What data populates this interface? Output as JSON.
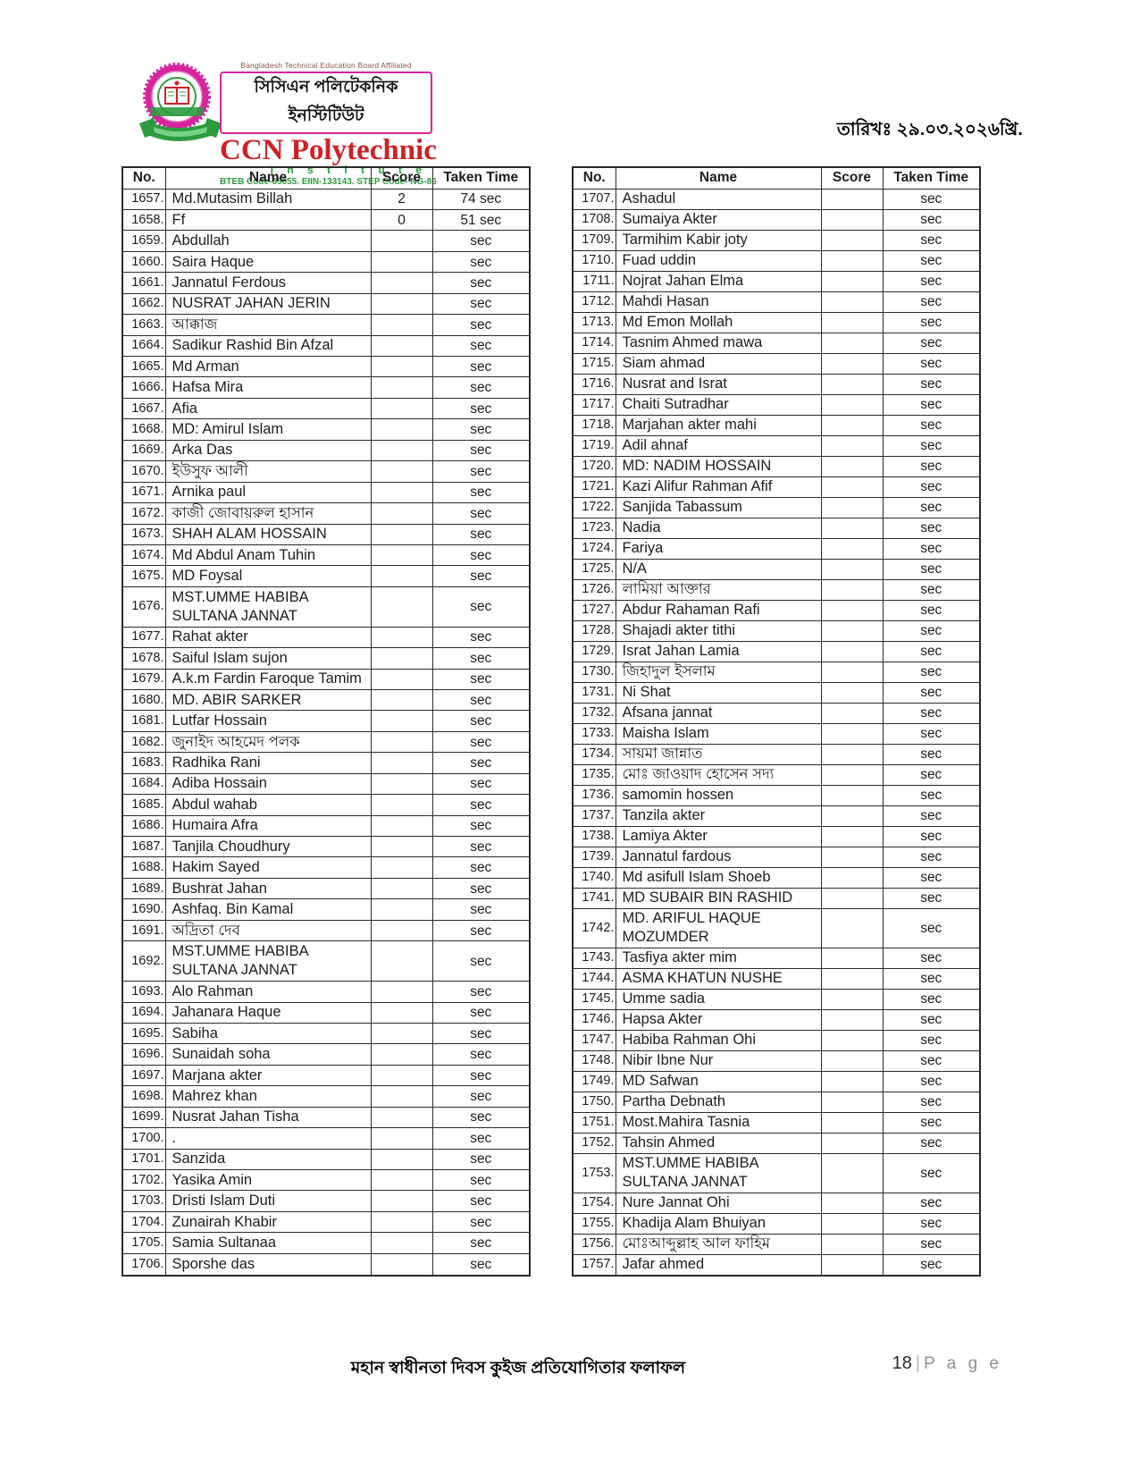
{
  "header": {
    "affiliation": "Bangladesh Technical Education Board Affiliated",
    "institute_name_bn": "সিসিএন পলিটেকনিক ইনস্টিটিউট",
    "institute_name_en": "CCN Polytechnic",
    "institute_sub": "I n s t i t u t e",
    "codes": "BTEB Code-65055. EIIN-133143. STEP Code- NG-86",
    "date": "তারিখঃ ২৯.০৩.২০২৬খ্রি.",
    "logo_colors": {
      "magenta": "#d6249c",
      "green": "#2e9b3f",
      "red": "#cf2127"
    }
  },
  "table_headers": {
    "no": "No.",
    "name": "Name",
    "score": "Score",
    "taken_time": "Taken Time"
  },
  "left_table": {
    "rows": [
      {
        "no": "1657.",
        "name": "Md.Mutasim Billah",
        "score": "2",
        "time": "74 sec"
      },
      {
        "no": "1658.",
        "name": "Ff",
        "score": "0",
        "time": "51 sec"
      },
      {
        "no": "1659.",
        "name": "Abdullah",
        "score": "",
        "time": "sec"
      },
      {
        "no": "1660.",
        "name": "Saira Haque",
        "score": "",
        "time": "sec"
      },
      {
        "no": "1661.",
        "name": "Jannatul Ferdous",
        "score": "",
        "time": "sec"
      },
      {
        "no": "1662.",
        "name": "NUSRAT JAHAN JERIN",
        "score": "",
        "time": "sec"
      },
      {
        "no": "1663.",
        "name": "আক্কাজ",
        "score": "",
        "time": "sec"
      },
      {
        "no": "1664.",
        "name": "Sadikur Rashid Bin Afzal",
        "score": "",
        "time": "sec"
      },
      {
        "no": "1665.",
        "name": "Md Arman",
        "score": "",
        "time": "sec"
      },
      {
        "no": "1666.",
        "name": "Hafsa Mira",
        "score": "",
        "time": "sec"
      },
      {
        "no": "1667.",
        "name": "Afia",
        "score": "",
        "time": "sec"
      },
      {
        "no": "1668.",
        "name": "MD: Amirul Islam",
        "score": "",
        "time": "sec"
      },
      {
        "no": "1669.",
        "name": "Arka Das",
        "score": "",
        "time": "sec"
      },
      {
        "no": "1670.",
        "name": "ইউসুফ আলী",
        "score": "",
        "time": "sec"
      },
      {
        "no": "1671.",
        "name": "Arnika paul",
        "score": "",
        "time": "sec"
      },
      {
        "no": "1672.",
        "name": "কাজী জোবায়রুল হাসান",
        "score": "",
        "time": "sec"
      },
      {
        "no": "1673.",
        "name": "SHAH ALAM HOSSAIN",
        "score": "",
        "time": "sec"
      },
      {
        "no": "1674.",
        "name": "Md Abdul Anam Tuhin",
        "score": "",
        "time": "sec"
      },
      {
        "no": "1675.",
        "name": "MD Foysal",
        "score": "",
        "time": "sec"
      },
      {
        "no": "1676.",
        "name": "MST.UMME HABIBA SULTANA JANNAT",
        "score": "",
        "time": "sec"
      },
      {
        "no": "1677.",
        "name": "Rahat akter",
        "score": "",
        "time": "sec"
      },
      {
        "no": "1678.",
        "name": "Saiful Islam sujon",
        "score": "",
        "time": "sec"
      },
      {
        "no": "1679.",
        "name": "A.k.m Fardin Faroque Tamim",
        "score": "",
        "time": "sec"
      },
      {
        "no": "1680.",
        "name": "MD. ABIR SARKER",
        "score": "",
        "time": "sec"
      },
      {
        "no": "1681.",
        "name": "Lutfar Hossain",
        "score": "",
        "time": "sec"
      },
      {
        "no": "1682.",
        "name": "জুনাইদ আহমেদ পলক",
        "score": "",
        "time": "sec"
      },
      {
        "no": "1683.",
        "name": "Radhika Rani",
        "score": "",
        "time": "sec"
      },
      {
        "no": "1684.",
        "name": "Adiba Hossain",
        "score": "",
        "time": "sec"
      },
      {
        "no": "1685.",
        "name": "Abdul wahab",
        "score": "",
        "time": "sec"
      },
      {
        "no": "1686.",
        "name": "Humaira Afra",
        "score": "",
        "time": "sec"
      },
      {
        "no": "1687.",
        "name": "Tanjila Choudhury",
        "score": "",
        "time": "sec"
      },
      {
        "no": "1688.",
        "name": "Hakim Sayed",
        "score": "",
        "time": "sec"
      },
      {
        "no": "1689.",
        "name": "Bushrat Jahan",
        "score": "",
        "time": "sec"
      },
      {
        "no": "1690.",
        "name": "Ashfaq. Bin Kamal",
        "score": "",
        "time": "sec"
      },
      {
        "no": "1691.",
        "name": "অদ্রিতা দেব",
        "score": "",
        "time": "sec"
      },
      {
        "no": "1692.",
        "name": "MST.UMME HABIBA SULTANA JANNAT",
        "score": "",
        "time": "sec"
      },
      {
        "no": "1693.",
        "name": "Alo Rahman",
        "score": "",
        "time": "sec"
      },
      {
        "no": "1694.",
        "name": "Jahanara Haque",
        "score": "",
        "time": "sec"
      },
      {
        "no": "1695.",
        "name": "Sabiha",
        "score": "",
        "time": "sec"
      },
      {
        "no": "1696.",
        "name": "Sunaidah soha",
        "score": "",
        "time": "sec"
      },
      {
        "no": "1697.",
        "name": "Marjana akter",
        "score": "",
        "time": "sec"
      },
      {
        "no": "1698.",
        "name": "Mahrez khan",
        "score": "",
        "time": "sec"
      },
      {
        "no": "1699.",
        "name": "Nusrat Jahan Tisha",
        "score": "",
        "time": "sec"
      },
      {
        "no": "1700.",
        "name": ".",
        "score": "",
        "time": "sec"
      },
      {
        "no": "1701.",
        "name": "Sanzida",
        "score": "",
        "time": "sec"
      },
      {
        "no": "1702.",
        "name": "Yasika Amin",
        "score": "",
        "time": "sec"
      },
      {
        "no": "1703.",
        "name": "Dristi Islam Duti",
        "score": "",
        "time": "sec"
      },
      {
        "no": "1704.",
        "name": "Zunairah Khabir",
        "score": "",
        "time": "sec"
      },
      {
        "no": "1705.",
        "name": "Samia Sultanaa",
        "score": "",
        "time": "sec"
      },
      {
        "no": "1706.",
        "name": "Sporshe das",
        "score": "",
        "time": "sec"
      }
    ]
  },
  "right_table": {
    "rows": [
      {
        "no": "1707.",
        "name": "Ashadul",
        "score": "",
        "time": "sec"
      },
      {
        "no": "1708.",
        "name": "Sumaiya Akter",
        "score": "",
        "time": "sec"
      },
      {
        "no": "1709.",
        "name": "Tarmihim Kabir joty",
        "score": "",
        "time": "sec"
      },
      {
        "no": "1710.",
        "name": "Fuad uddin",
        "score": "",
        "time": "sec"
      },
      {
        "no": "1711.",
        "name": "Nojrat Jahan Elma",
        "score": "",
        "time": "sec"
      },
      {
        "no": "1712.",
        "name": "Mahdi Hasan",
        "score": "",
        "time": "sec"
      },
      {
        "no": "1713.",
        "name": "Md Emon Mollah",
        "score": "",
        "time": "sec"
      },
      {
        "no": "1714.",
        "name": "Tasnim Ahmed mawa",
        "score": "",
        "time": "sec"
      },
      {
        "no": "1715.",
        "name": "Siam ahmad",
        "score": "",
        "time": "sec"
      },
      {
        "no": "1716.",
        "name": "Nusrat and Israt",
        "score": "",
        "time": "sec"
      },
      {
        "no": "1717.",
        "name": "Chaiti Sutradhar",
        "score": "",
        "time": "sec"
      },
      {
        "no": "1718.",
        "name": "Marjahan akter mahi",
        "score": "",
        "time": "sec"
      },
      {
        "no": "1719.",
        "name": "Adil ahnaf",
        "score": "",
        "time": "sec"
      },
      {
        "no": "1720.",
        "name": "MD: NADIM HOSSAIN",
        "score": "",
        "time": "sec"
      },
      {
        "no": "1721.",
        "name": "Kazi Alifur Rahman Afif",
        "score": "",
        "time": "sec"
      },
      {
        "no": "1722.",
        "name": "Sanjida Tabassum",
        "score": "",
        "time": "sec"
      },
      {
        "no": "1723.",
        "name": "Nadia",
        "score": "",
        "time": "sec"
      },
      {
        "no": "1724.",
        "name": "Fariya",
        "score": "",
        "time": "sec"
      },
      {
        "no": "1725.",
        "name": "N/A",
        "score": "",
        "time": "sec"
      },
      {
        "no": "1726.",
        "name": "লামিয়া আক্তার",
        "score": "",
        "time": "sec"
      },
      {
        "no": "1727.",
        "name": "Abdur Rahaman Rafi",
        "score": "",
        "time": "sec"
      },
      {
        "no": "1728.",
        "name": "Shajadi akter tithi",
        "score": "",
        "time": "sec"
      },
      {
        "no": "1729.",
        "name": "Israt Jahan Lamia",
        "score": "",
        "time": "sec"
      },
      {
        "no": "1730.",
        "name": "জিহাদুল ইসলাম",
        "score": "",
        "time": "sec"
      },
      {
        "no": "1731.",
        "name": "Ni Shat",
        "score": "",
        "time": "sec"
      },
      {
        "no": "1732.",
        "name": "Afsana jannat",
        "score": "",
        "time": "sec"
      },
      {
        "no": "1733.",
        "name": "Maisha Islam",
        "score": "",
        "time": "sec"
      },
      {
        "no": "1734.",
        "name": "সায়মা জান্নাত",
        "score": "",
        "time": "sec"
      },
      {
        "no": "1735.",
        "name": "মোঃ জাওয়াদ হোসেন সদ্য",
        "score": "",
        "time": "sec"
      },
      {
        "no": "1736.",
        "name": "samomin hossen",
        "score": "",
        "time": "sec"
      },
      {
        "no": "1737.",
        "name": "Tanzila akter",
        "score": "",
        "time": "sec"
      },
      {
        "no": "1738.",
        "name": "Lamiya Akter",
        "score": "",
        "time": "sec"
      },
      {
        "no": "1739.",
        "name": "Jannatul fardous",
        "score": "",
        "time": "sec"
      },
      {
        "no": "1740.",
        "name": "Md asifull Islam Shoeb",
        "score": "",
        "time": "sec"
      },
      {
        "no": "1741.",
        "name": "MD SUBAIR BIN RASHID",
        "score": "",
        "time": "sec"
      },
      {
        "no": "1742.",
        "name": "MD. ARIFUL HAQUE MOZUMDER",
        "score": "",
        "time": "sec"
      },
      {
        "no": "1743.",
        "name": "Tasfiya akter mim",
        "score": "",
        "time": "sec"
      },
      {
        "no": "1744.",
        "name": "ASMA KHATUN NUSHE",
        "score": "",
        "time": "sec"
      },
      {
        "no": "1745.",
        "name": "Umme sadia",
        "score": "",
        "time": "sec"
      },
      {
        "no": "1746.",
        "name": "Hapsa Akter",
        "score": "",
        "time": "sec"
      },
      {
        "no": "1747.",
        "name": "Habiba Rahman Ohi",
        "score": "",
        "time": "sec"
      },
      {
        "no": "1748.",
        "name": "Nibir Ibne Nur",
        "score": "",
        "time": "sec"
      },
      {
        "no": "1749.",
        "name": "MD Safwan",
        "score": "",
        "time": "sec"
      },
      {
        "no": "1750.",
        "name": "Partha Debnath",
        "score": "",
        "time": "sec"
      },
      {
        "no": "1751.",
        "name": "Most.Mahira Tasnia",
        "score": "",
        "time": "sec"
      },
      {
        "no": "1752.",
        "name": "Tahsin Ahmed",
        "score": "",
        "time": "sec"
      },
      {
        "no": "1753.",
        "name": "MST.UMME HABIBA SULTANA JANNAT",
        "score": "",
        "time": "sec"
      },
      {
        "no": "1754.",
        "name": "Nure Jannat Ohi",
        "score": "",
        "time": "sec"
      },
      {
        "no": "1755.",
        "name": "Khadija Alam Bhuiyan",
        "score": "",
        "time": "sec"
      },
      {
        "no": "1756.",
        "name": "মোঃআব্দুল্লাহ আল ফাহিম",
        "score": "",
        "time": "sec"
      },
      {
        "no": "1757.",
        "name": "Jafar ahmed",
        "score": "",
        "time": "sec"
      }
    ]
  },
  "footer": {
    "title": "মহান স্বাধীনতা দিবস কুইজ প্রতিযোগিতার ফলাফল",
    "page_number": "18",
    "page_separator": "|",
    "page_label": "P a g e"
  }
}
